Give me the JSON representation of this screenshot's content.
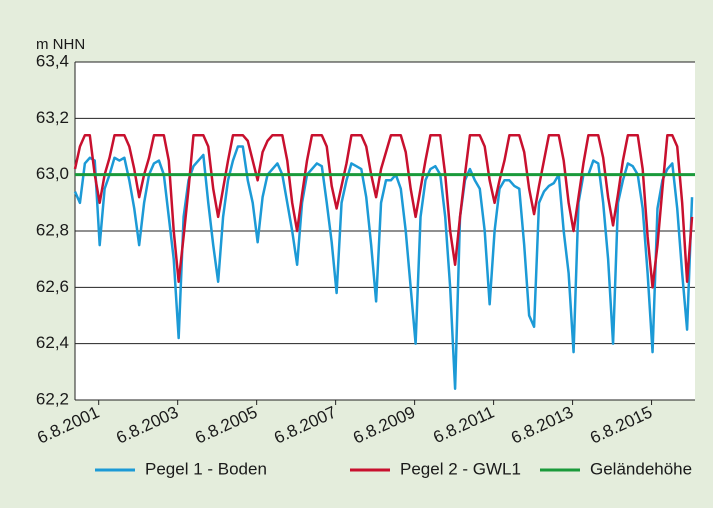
{
  "chart_data": {
    "type": "line",
    "y_label": "m NHN",
    "xlim": [
      2001,
      2016.7
    ],
    "ylim": [
      62.2,
      63.4
    ],
    "yticks": [
      {
        "value": 62.2,
        "label": "62,2"
      },
      {
        "value": 62.4,
        "label": "62,4"
      },
      {
        "value": 62.6,
        "label": "62,6"
      },
      {
        "value": 62.8,
        "label": "62,8"
      },
      {
        "value": 63.0,
        "label": "63,0"
      },
      {
        "value": 63.2,
        "label": "63,2"
      },
      {
        "value": 63.4,
        "label": "63,4"
      }
    ],
    "xticks": [
      {
        "value": 2001.6,
        "label": "6.8.2001"
      },
      {
        "value": 2003.6,
        "label": "6.8.2003"
      },
      {
        "value": 2005.6,
        "label": "6.8.2005"
      },
      {
        "value": 2007.6,
        "label": "6.8.2007"
      },
      {
        "value": 2009.6,
        "label": "6.8.2009"
      },
      {
        "value": 2011.6,
        "label": "6.8.2011"
      },
      {
        "value": 2013.6,
        "label": "6.8.2013"
      },
      {
        "value": 2015.6,
        "label": "6.8.2015"
      }
    ],
    "grid": true,
    "x": [
      2001,
      2001.125,
      2001.25,
      2001.375,
      2001.5,
      2001.625,
      2001.75,
      2001.875,
      2002,
      2002.125,
      2002.25,
      2002.375,
      2002.5,
      2002.625,
      2002.75,
      2002.875,
      2003,
      2003.125,
      2003.25,
      2003.375,
      2003.5,
      2003.625,
      2003.75,
      2003.875,
      2004,
      2004.125,
      2004.25,
      2004.375,
      2004.5,
      2004.625,
      2004.75,
      2004.875,
      2005,
      2005.125,
      2005.25,
      2005.375,
      2005.5,
      2005.625,
      2005.75,
      2005.875,
      2006,
      2006.125,
      2006.25,
      2006.375,
      2006.5,
      2006.625,
      2006.75,
      2006.875,
      2007,
      2007.125,
      2007.25,
      2007.375,
      2007.5,
      2007.625,
      2007.75,
      2007.875,
      2008,
      2008.125,
      2008.25,
      2008.375,
      2008.5,
      2008.625,
      2008.75,
      2008.875,
      2009,
      2009.125,
      2009.25,
      2009.375,
      2009.5,
      2009.625,
      2009.75,
      2009.875,
      2010,
      2010.125,
      2010.25,
      2010.375,
      2010.5,
      2010.625,
      2010.75,
      2010.875,
      2011,
      2011.125,
      2011.25,
      2011.375,
      2011.5,
      2011.625,
      2011.75,
      2011.875,
      2012,
      2012.125,
      2012.25,
      2012.375,
      2012.5,
      2012.625,
      2012.75,
      2012.875,
      2013,
      2013.125,
      2013.25,
      2013.375,
      2013.5,
      2013.625,
      2013.75,
      2013.875,
      2014,
      2014.125,
      2014.25,
      2014.375,
      2014.5,
      2014.625,
      2014.75,
      2014.875,
      2015,
      2015.125,
      2015.25,
      2015.375,
      2015.5,
      2015.625,
      2015.75,
      2015.875,
      2016,
      2016.125,
      2016.25,
      2016.375,
      2016.5,
      2016.625
    ],
    "series": [
      {
        "name": "Pegel 1 - Boden",
        "color": "#1c9ad6",
        "values": [
          62.94,
          62.9,
          63.04,
          63.06,
          63.05,
          62.75,
          62.95,
          63.0,
          63.06,
          63.05,
          63.06,
          62.98,
          62.88,
          62.75,
          62.9,
          63.0,
          63.04,
          63.05,
          63.0,
          62.85,
          62.7,
          62.42,
          62.85,
          62.98,
          63.03,
          63.05,
          63.07,
          62.9,
          62.75,
          62.62,
          62.85,
          62.98,
          63.05,
          63.1,
          63.1,
          62.98,
          62.9,
          62.76,
          62.92,
          63.0,
          63.02,
          63.04,
          63.0,
          62.9,
          62.8,
          62.68,
          62.9,
          63.0,
          63.02,
          63.04,
          63.03,
          62.9,
          62.76,
          62.58,
          62.9,
          62.98,
          63.04,
          63.03,
          63.02,
          62.92,
          62.75,
          62.55,
          62.9,
          62.98,
          62.98,
          63.0,
          62.95,
          62.8,
          62.6,
          62.4,
          62.85,
          62.98,
          63.02,
          63.03,
          63.0,
          62.85,
          62.6,
          62.24,
          62.85,
          62.98,
          63.02,
          62.98,
          62.95,
          62.8,
          62.54,
          62.8,
          62.95,
          62.98,
          62.98,
          62.96,
          62.95,
          62.75,
          62.5,
          62.46,
          62.9,
          62.94,
          62.96,
          62.97,
          63.0,
          62.8,
          62.65,
          62.37,
          62.9,
          63.0,
          63.0,
          63.05,
          63.04,
          62.9,
          62.7,
          62.4,
          62.9,
          62.98,
          63.04,
          63.03,
          63.0,
          62.88,
          62.65,
          62.37,
          62.88,
          62.98,
          63.02,
          63.04,
          62.88,
          62.65,
          62.45,
          62.92
        ]
      },
      {
        "name": "Pegel 2 - GWL1",
        "color": "#c8102e",
        "values": [
          63.02,
          63.1,
          63.14,
          63.14,
          63.0,
          62.9,
          63.0,
          63.06,
          63.14,
          63.14,
          63.14,
          63.1,
          63.02,
          62.92,
          63.0,
          63.06,
          63.14,
          63.14,
          63.14,
          63.05,
          62.8,
          62.62,
          62.78,
          62.95,
          63.14,
          63.14,
          63.14,
          63.1,
          62.95,
          62.85,
          62.95,
          63.05,
          63.14,
          63.14,
          63.14,
          63.12,
          63.05,
          62.98,
          63.08,
          63.12,
          63.14,
          63.14,
          63.14,
          63.05,
          62.9,
          62.8,
          62.93,
          63.05,
          63.14,
          63.14,
          63.14,
          63.1,
          62.96,
          62.88,
          62.96,
          63.04,
          63.14,
          63.14,
          63.14,
          63.1,
          63.0,
          62.92,
          63.02,
          63.08,
          63.14,
          63.14,
          63.14,
          63.08,
          62.95,
          62.85,
          62.95,
          63.05,
          63.14,
          63.14,
          63.14,
          63.0,
          62.8,
          62.68,
          62.85,
          63.0,
          63.14,
          63.14,
          63.14,
          63.1,
          62.98,
          62.9,
          62.98,
          63.05,
          63.14,
          63.14,
          63.14,
          63.08,
          62.95,
          62.86,
          62.96,
          63.05,
          63.14,
          63.14,
          63.14,
          63.05,
          62.9,
          62.8,
          62.92,
          63.04,
          63.14,
          63.14,
          63.14,
          63.06,
          62.92,
          62.82,
          62.93,
          63.05,
          63.14,
          63.14,
          63.14,
          63.02,
          62.78,
          62.6,
          62.75,
          62.95,
          63.14,
          63.14,
          63.1,
          62.9,
          62.62,
          62.85
        ]
      },
      {
        "name": "Geländehöhe",
        "color": "#1a9a3a",
        "x": [
          2001,
          2016.7
        ],
        "values": [
          63.0,
          63.0
        ]
      }
    ]
  }
}
